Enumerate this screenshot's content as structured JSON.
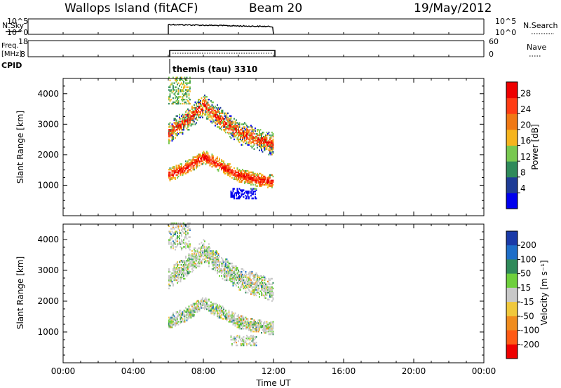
{
  "header": {
    "station": "Wallops Island (fitACF)",
    "beam": "Beam 20",
    "date": "19/May/2012"
  },
  "aux_panels": {
    "nsky_label": "N.Sky",
    "nsky_ticks": [
      "10^5",
      "10^0"
    ],
    "nsky_right_ticks": [
      "10^5",
      "10^0"
    ],
    "nsearch_label": "N.Search",
    "freq_label": "Freq.",
    "freq_unit": "[MHz]",
    "freq_ticks": [
      "18",
      "8"
    ],
    "nave_ticks": [
      "60",
      "0"
    ],
    "nave_label": "Nave",
    "cpid_label": "CPID",
    "cpid_value": "themis (tau) 3310"
  },
  "x_axis": {
    "label": "Time UT",
    "ticks": [
      "00:00",
      "04:00",
      "08:00",
      "12:00",
      "16:00",
      "20:00",
      "00:00"
    ]
  },
  "power_panel": {
    "ylabel": "Slant Range [km]",
    "yticks": [
      "1000",
      "2000",
      "3000",
      "4000"
    ],
    "colorbar_label": "Power [dB]",
    "colorbar_ticks": [
      "28",
      "24",
      "20",
      "16",
      "12",
      "8",
      "4"
    ],
    "colors": [
      "#0000ee",
      "#1e3c96",
      "#2f8a5a",
      "#78c850",
      "#f5b41e",
      "#f07814",
      "#ff3c14",
      "#ee0000"
    ]
  },
  "velocity_panel": {
    "ylabel": "Slant Range [km]",
    "yticks": [
      "1000",
      "2000",
      "3000",
      "4000"
    ],
    "colorbar_label": "Velocity [m s⁻¹]",
    "colorbar_ticks": [
      "200",
      "100",
      "50",
      "15",
      "-15",
      "-50",
      "-100",
      "-200"
    ],
    "colors": [
      "#1a3aa8",
      "#1e6ec8",
      "#2f8a5a",
      "#6ecf3c",
      "#c8c8c8",
      "#f0c83c",
      "#f08c1e",
      "#ff5a14",
      "#ee0000"
    ]
  },
  "chart_data": [
    {
      "type": "heatmap",
      "title": "Power",
      "xlabel": "Time UT",
      "ylabel": "Slant Range [km]",
      "xlim": [
        0,
        24
      ],
      "ylim": [
        0,
        4500
      ],
      "data_window_hours": [
        6.0,
        12.0
      ],
      "bands": [
        {
          "name": "upper echo",
          "points": [
            [
              6.0,
              2700
            ],
            [
              7.0,
              3100
            ],
            [
              8.0,
              3600
            ],
            [
              9.0,
              3100
            ],
            [
              10.0,
              2700
            ],
            [
              11.0,
              2500
            ],
            [
              12.0,
              2300
            ]
          ]
        },
        {
          "name": "lower echo",
          "points": [
            [
              6.0,
              1300
            ],
            [
              7.0,
              1550
            ],
            [
              8.0,
              1900
            ],
            [
              9.0,
              1600
            ],
            [
              10.0,
              1300
            ],
            [
              11.0,
              1150
            ],
            [
              12.0,
              1100
            ]
          ]
        }
      ],
      "colorbar_range_db": [
        0,
        30
      ]
    },
    {
      "type": "heatmap",
      "title": "Velocity",
      "xlabel": "Time UT",
      "ylabel": "Slant Range [km]",
      "xlim": [
        0,
        24
      ],
      "ylim": [
        0,
        4500
      ],
      "data_window_hours": [
        6.0,
        12.0
      ],
      "colorbar_range_ms": [
        -250,
        250
      ]
    }
  ]
}
